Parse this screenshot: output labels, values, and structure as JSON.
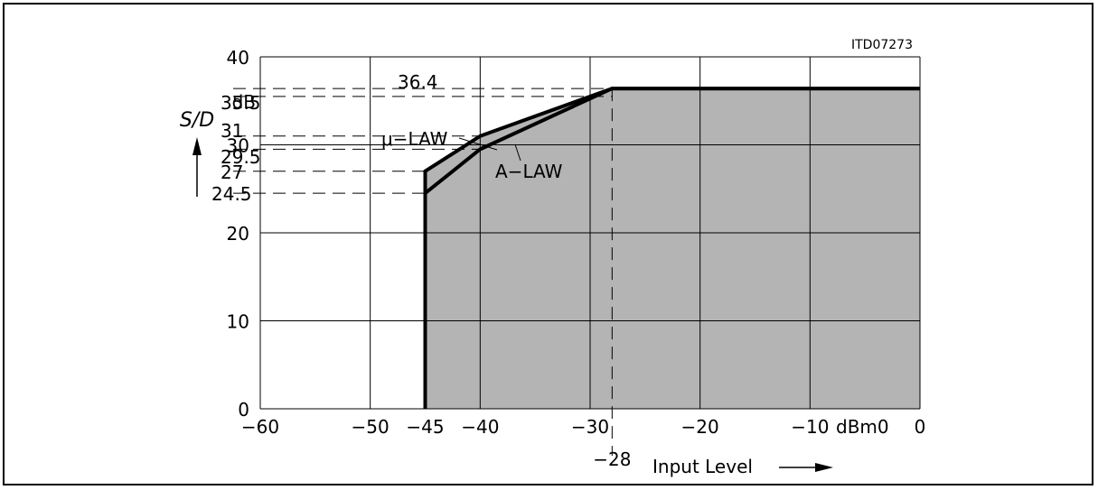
{
  "chart_data": {
    "type": "area",
    "figure_id": "ITD07273",
    "ylabel": "S/D",
    "y_unit": "dB",
    "xlabel": "Input Level",
    "x_unit": "dBm0",
    "xlim": [
      -60,
      0
    ],
    "ylim": [
      0,
      40
    ],
    "grid": true,
    "x_ticks": [
      {
        "value": -60,
        "label": "−60"
      },
      {
        "value": -50,
        "label": "−50"
      },
      {
        "value": -45,
        "label": "−45"
      },
      {
        "value": -40,
        "label": "−40"
      },
      {
        "value": -30,
        "label": "−30"
      },
      {
        "value": -20,
        "label": "−20"
      },
      {
        "value": -10,
        "label": "−10"
      },
      {
        "value": 0,
        "label": "0"
      }
    ],
    "x_gridlines": [
      -60,
      -50,
      -40,
      -30,
      -20,
      -10,
      0
    ],
    "y_ticks": [
      {
        "value": 0,
        "label": "0"
      },
      {
        "value": 10,
        "label": "10"
      },
      {
        "value": 20,
        "label": "20"
      },
      {
        "value": 30,
        "label": "30"
      },
      {
        "value": 40,
        "label": "40"
      }
    ],
    "y_gridlines": [
      0,
      10,
      20,
      30,
      40
    ],
    "reference_lines": [
      {
        "value": 36.4,
        "label": "36.4"
      },
      {
        "value": 35.5,
        "label": "35.5"
      },
      {
        "value": 31,
        "label": "31"
      },
      {
        "value": 29.5,
        "label": "29.5"
      },
      {
        "value": 27,
        "label": "27"
      },
      {
        "value": 24.5,
        "label": "24.5"
      }
    ],
    "vertical_marker": {
      "value": -28,
      "label": "−28"
    },
    "series": [
      {
        "name": "μ−LAW",
        "x": [
          -45,
          -45,
          -40,
          -28,
          0
        ],
        "y": [
          0,
          27,
          31,
          36.4,
          36.4
        ]
      },
      {
        "name": "A−LAW",
        "x": [
          -45,
          -45,
          -40,
          -28,
          0
        ],
        "y": [
          0,
          24.5,
          29.5,
          36.4,
          36.4
        ]
      }
    ],
    "fill_color": "#b4b4b4"
  }
}
